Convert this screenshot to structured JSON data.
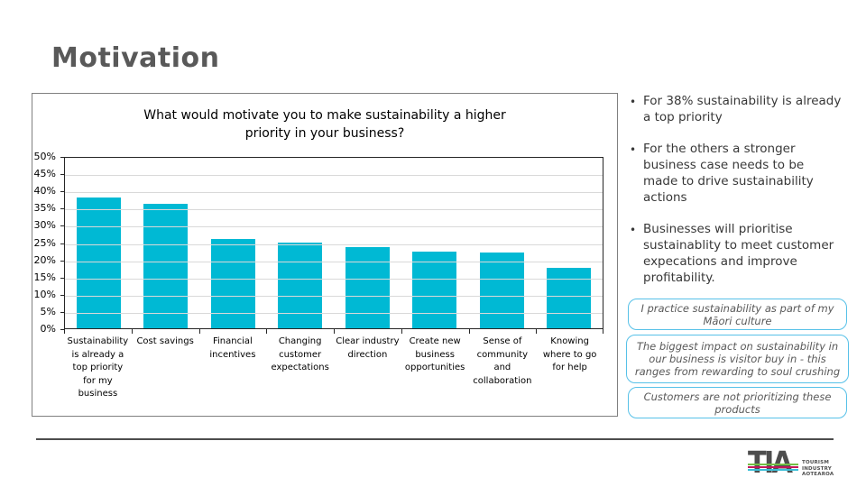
{
  "slide": {
    "title": "Motivation"
  },
  "chart": {
    "title_lines": [
      "What would motivate you to make sustainability a higher",
      "priority in your business?"
    ]
  },
  "chart_data": {
    "type": "bar",
    "title": "What would motivate you to make sustainability a higher priority in your business?",
    "categories": [
      "Sustainability is already a top priority for my business",
      "Cost savings",
      "Financial incentives",
      "Changing customer expectations",
      "Clear industry direction",
      "Create new business opportunities",
      "Sense of community and collaboration",
      "Knowing where to go for help"
    ],
    "values": [
      38,
      36,
      26,
      25,
      23.5,
      22.3,
      22,
      17.5
    ],
    "xlabel": "",
    "ylabel": "",
    "ylim": [
      0,
      50
    ],
    "ytick_step": 5,
    "ytick_suffix": "%",
    "grid": true,
    "legend_position": "none",
    "bar_color": "#00b9d4"
  },
  "bullets": [
    "For 38% sustainability is already a top priority",
    "For the others a stronger business case needs to be made to drive sustainability actions",
    "Businesses will prioritise sustainablity to meet customer expecations and improve profitability."
  ],
  "quotes": [
    "I practice sustainability as part of my Māori culture",
    "The biggest impact on sustainability in our business is visitor buy in - this ranges from rewarding to soul crushing",
    "Customers are not prioritizing these products"
  ],
  "logo": {
    "acronym": "TIA",
    "lines": [
      "TOURISM",
      "INDUSTRY",
      "AOTEAROA"
    ],
    "stripe_colors": [
      "#72bf44",
      "#c2185b",
      "#3bbfd8"
    ]
  },
  "colors": {
    "slide_title": "#595959",
    "bar": "#00b9d4",
    "gridline": "#d9d9d9",
    "quote_border": "#57c1e8",
    "divider": "#4d4d4d"
  }
}
